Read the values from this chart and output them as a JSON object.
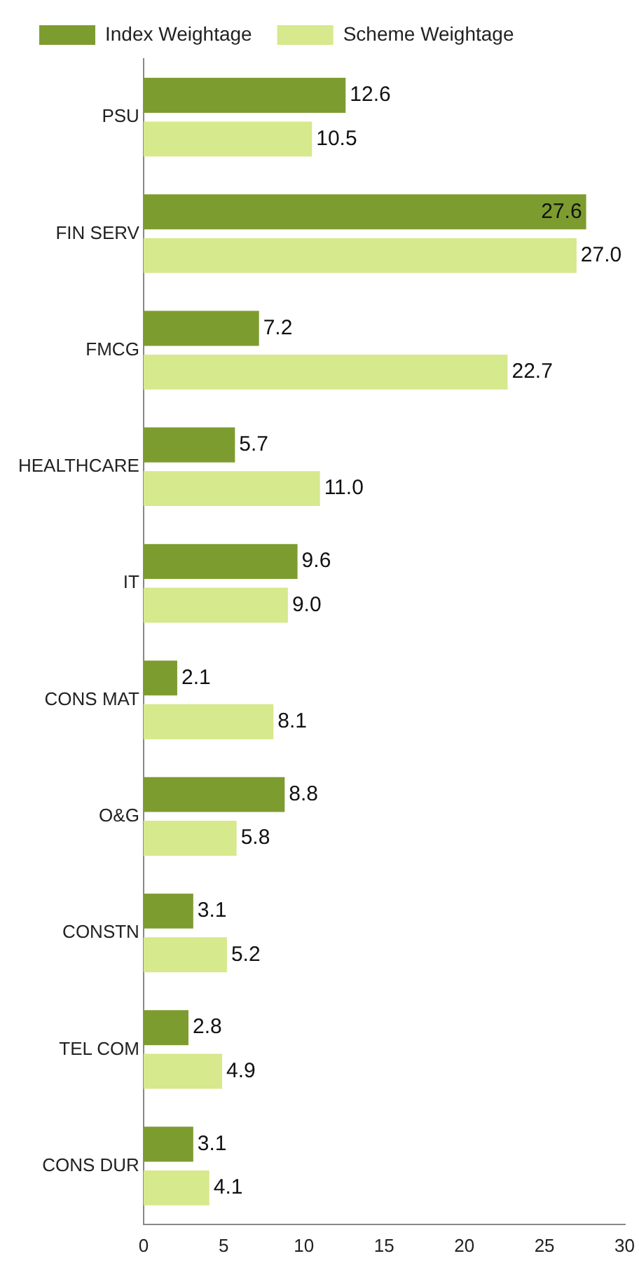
{
  "chart_data": {
    "type": "bar",
    "orientation": "horizontal",
    "categories": [
      "PSU",
      "FIN SERV",
      "FMCG",
      "HEALTHCARE",
      "IT",
      "CONS MAT",
      "O&G",
      "CONSTN",
      "TEL COM",
      "CONS DUR"
    ],
    "series": [
      {
        "name": "Index Weightage",
        "color": "#7d9c30",
        "values": [
          12.6,
          27.6,
          7.2,
          5.7,
          9.6,
          2.1,
          8.8,
          3.1,
          2.8,
          3.1
        ],
        "value_labels": [
          "12.6",
          "27.6",
          "7.2",
          "5.7",
          "9.6",
          "2.1",
          "8.8",
          "3.1",
          "2.8",
          "3.1"
        ]
      },
      {
        "name": "Scheme Weightage",
        "color": "#d6e98c",
        "values": [
          10.5,
          27.0,
          22.7,
          11.0,
          9.0,
          8.1,
          5.8,
          5.2,
          4.9,
          4.1
        ],
        "value_labels": [
          "10.5",
          "27.0",
          "22.7",
          "11.0",
          "9.0",
          "8.1",
          "5.8",
          "5.2",
          "4.9",
          "4.1"
        ]
      }
    ],
    "xlim": [
      0,
      30
    ],
    "xticks": [
      0,
      5,
      10,
      15,
      20,
      25,
      30
    ],
    "grid": false,
    "legend": "top left"
  }
}
